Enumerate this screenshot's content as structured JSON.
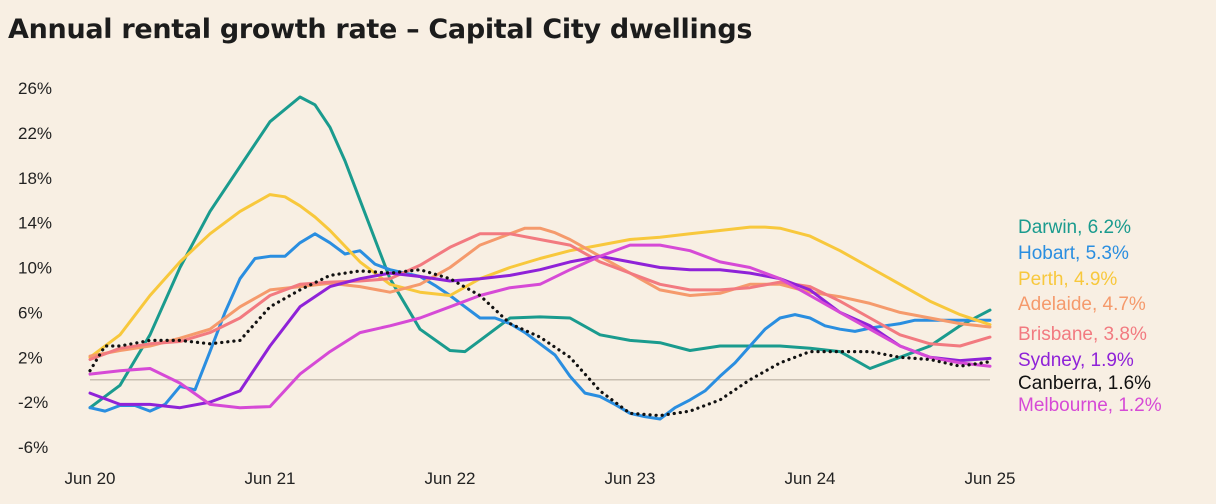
{
  "chart_data": {
    "type": "line",
    "title": "Annual rental growth rate – Capital City dwellings",
    "xlabel": "",
    "ylabel": "",
    "x_ticks": [
      "Jun 20",
      "Jun 21",
      "Jun 22",
      "Jun 23",
      "Jun 24",
      "Jun 25"
    ],
    "y_ticks": [
      26,
      22,
      18,
      14,
      10,
      6,
      2,
      -2,
      -6
    ],
    "y_tick_labels": [
      "26%",
      "22%",
      "18%",
      "14%",
      "10%",
      "6%",
      "2%",
      "-2%",
      "-6%"
    ],
    "ylim": [
      -6,
      26
    ],
    "xlim": [
      0,
      60
    ],
    "x_unit": "months since Jun 20",
    "grid": false,
    "series": [
      {
        "name": "Darwin",
        "end_label": "Darwin, 6.2%",
        "color": "#1a9b8e",
        "style": "solid",
        "x": [
          0,
          2,
          4,
          6,
          8,
          10,
          12,
          14,
          15,
          16,
          17,
          18,
          20,
          22,
          24,
          25,
          26,
          28,
          30,
          32,
          34,
          36,
          38,
          40,
          42,
          44,
          46,
          48,
          50,
          52,
          54,
          56,
          58,
          60
        ],
        "y": [
          -2.5,
          -0.5,
          4,
          10,
          15,
          19,
          23,
          25.2,
          24.5,
          22.5,
          19.5,
          16,
          9,
          4.5,
          2.6,
          2.5,
          3.5,
          5.5,
          5.6,
          5.5,
          4,
          3.5,
          3.3,
          2.6,
          3,
          3,
          3,
          2.8,
          2.5,
          1,
          2,
          3,
          4.8,
          6.2
        ]
      },
      {
        "name": "Hobart",
        "end_label": "Hobart, 5.3%",
        "color": "#2a8ee0",
        "style": "solid",
        "x": [
          0,
          1,
          2,
          3,
          4,
          5,
          6,
          7,
          8,
          9,
          10,
          11,
          12,
          13,
          14,
          15,
          16,
          17,
          18,
          19,
          20,
          21,
          22,
          23,
          24,
          25,
          26,
          27,
          28,
          29,
          30,
          31,
          32,
          33,
          34,
          35,
          36,
          37,
          38,
          39,
          40,
          41,
          42,
          43,
          44,
          45,
          46,
          47,
          48,
          49,
          50,
          51,
          52,
          53,
          54,
          55,
          56,
          57,
          58,
          59,
          60
        ],
        "y": [
          -2.5,
          -2.8,
          -2.3,
          -2.3,
          -2.8,
          -2.2,
          -0.6,
          -0.9,
          2.5,
          6,
          9,
          10.8,
          11,
          11,
          12.2,
          13,
          12.2,
          11.2,
          11.5,
          10.3,
          9.8,
          9.5,
          9.2,
          8.4,
          7.5,
          6.5,
          5.5,
          5.5,
          5,
          4.2,
          3.2,
          2.2,
          0.3,
          -1.2,
          -1.5,
          -2.2,
          -3,
          -3.3,
          -3.5,
          -2.5,
          -1.8,
          -1,
          0.3,
          1.5,
          3,
          4.5,
          5.5,
          5.8,
          5.5,
          4.8,
          4.5,
          4.3,
          4.6,
          4.8,
          5,
          5.3,
          5.3,
          5.3,
          5.3,
          5.3,
          5.3
        ]
      },
      {
        "name": "Perth",
        "end_label": "Perth, 4.9%",
        "color": "#f8c83c",
        "style": "solid",
        "x": [
          0,
          2,
          4,
          6,
          8,
          10,
          12,
          13,
          14,
          15,
          16,
          18,
          20,
          22,
          24,
          26,
          28,
          30,
          32,
          34,
          36,
          38,
          40,
          42,
          44,
          45,
          46,
          48,
          50,
          52,
          54,
          56,
          58,
          60
        ],
        "y": [
          2,
          4,
          7.5,
          10.5,
          13,
          15,
          16.5,
          16.3,
          15.5,
          14.5,
          13.3,
          10.5,
          8.5,
          7.8,
          7.5,
          9,
          10,
          10.8,
          11.5,
          12,
          12.5,
          12.7,
          13,
          13.3,
          13.6,
          13.6,
          13.5,
          12.8,
          11.5,
          10,
          8.5,
          7,
          5.8,
          4.9
        ]
      },
      {
        "name": "Adelaide",
        "end_label": "Adelaide, 4.7%",
        "color": "#f59a6c",
        "style": "solid",
        "x": [
          0,
          2,
          4,
          6,
          8,
          10,
          12,
          14,
          16,
          18,
          20,
          22,
          24,
          26,
          28,
          29,
          30,
          31,
          32,
          34,
          36,
          38,
          40,
          42,
          44,
          46,
          48,
          50,
          52,
          54,
          56,
          58,
          60
        ],
        "y": [
          2.1,
          2.6,
          3,
          3.7,
          4.5,
          6.5,
          8,
          8.3,
          8.6,
          8.3,
          7.8,
          8.5,
          10,
          12,
          13,
          13.5,
          13.5,
          13.1,
          12.5,
          11,
          9.5,
          8,
          7.5,
          7.7,
          8.5,
          8.5,
          7.8,
          7.4,
          6.8,
          6,
          5.5,
          5,
          4.7
        ]
      },
      {
        "name": "Brisbane",
        "end_label": "Brisbane, 3.8%",
        "color": "#f27a80",
        "style": "solid",
        "x": [
          0,
          2,
          4,
          6,
          8,
          10,
          12,
          14,
          16,
          18,
          20,
          22,
          24,
          26,
          28,
          30,
          32,
          34,
          36,
          38,
          40,
          42,
          44,
          46,
          48,
          50,
          52,
          54,
          56,
          58,
          60
        ],
        "y": [
          1.8,
          2.8,
          3.2,
          3.4,
          4.2,
          5.5,
          7.5,
          8.5,
          8.7,
          8.8,
          9,
          10.2,
          11.8,
          13,
          13,
          12.5,
          12,
          10.5,
          9.5,
          8.5,
          8,
          8,
          8.2,
          8.7,
          8.3,
          7,
          5.5,
          4,
          3.2,
          3,
          3.8
        ]
      },
      {
        "name": "Sydney",
        "end_label": "Sydney, 1.9%",
        "color": "#8f22d8",
        "style": "solid",
        "x": [
          0,
          2,
          4,
          6,
          8,
          10,
          12,
          14,
          16,
          18,
          20,
          22,
          24,
          26,
          28,
          30,
          32,
          34,
          36,
          38,
          40,
          42,
          44,
          46,
          48,
          50,
          52,
          54,
          56,
          58,
          60
        ],
        "y": [
          -1.2,
          -2.2,
          -2.2,
          -2.5,
          -2,
          -1,
          3,
          6.5,
          8.3,
          9,
          9.5,
          9.2,
          8.8,
          9,
          9.3,
          9.8,
          10.5,
          11,
          10.5,
          10,
          9.8,
          9.8,
          9.5,
          9,
          8,
          6,
          4.8,
          3,
          2,
          1.7,
          1.9
        ]
      },
      {
        "name": "Canberra",
        "end_label": "Canberra, 1.6%",
        "color": "#111111",
        "style": "dotted",
        "x": [
          0,
          1,
          2,
          4,
          6,
          8,
          10,
          12,
          14,
          16,
          18,
          20,
          22,
          24,
          26,
          28,
          30,
          32,
          34,
          36,
          38,
          40,
          42,
          44,
          46,
          48,
          50,
          52,
          54,
          56,
          58,
          60
        ],
        "y": [
          0.8,
          3,
          3,
          3.5,
          3.5,
          3.2,
          3.5,
          6.5,
          8,
          9.3,
          9.7,
          9.5,
          9.8,
          9,
          7.5,
          5,
          3.8,
          2,
          -1,
          -3,
          -3.2,
          -2.8,
          -1.8,
          0,
          1.5,
          2.5,
          2.5,
          2.5,
          2,
          1.8,
          1.2,
          1.6
        ]
      },
      {
        "name": "Melbourne",
        "end_label": "Melbourne, 1.2%",
        "color": "#d64ad6",
        "style": "solid",
        "x": [
          0,
          2,
          4,
          6,
          8,
          10,
          12,
          14,
          16,
          18,
          20,
          22,
          24,
          26,
          28,
          30,
          32,
          34,
          36,
          38,
          40,
          42,
          44,
          46,
          48,
          50,
          52,
          54,
          56,
          58,
          60
        ],
        "y": [
          0.5,
          0.8,
          1,
          -0.3,
          -2.2,
          -2.5,
          -2.4,
          0.5,
          2.5,
          4.2,
          4.8,
          5.5,
          6.5,
          7.5,
          8.2,
          8.5,
          9.8,
          11,
          12,
          12,
          11.5,
          10.5,
          10,
          9,
          7.5,
          6,
          4.5,
          3,
          2,
          1.5,
          1.2
        ]
      }
    ]
  }
}
